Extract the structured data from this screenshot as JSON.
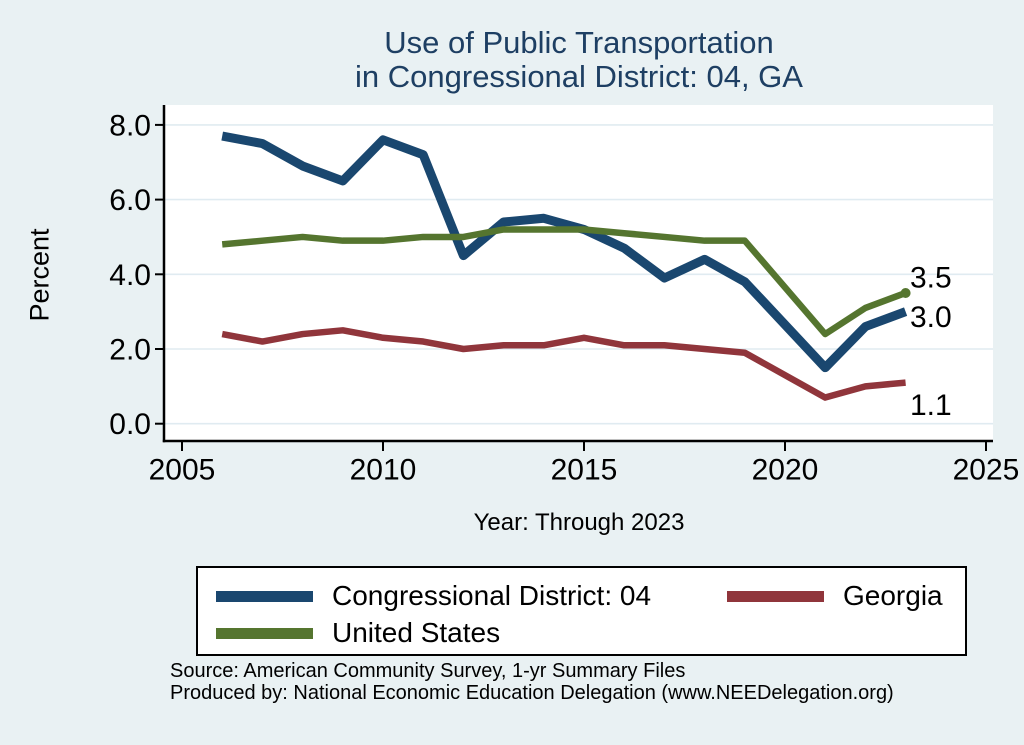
{
  "title": {
    "line1": "Use of Public Transportation",
    "line2": "in Congressional District: 04, GA"
  },
  "colors": {
    "background": "#e9f1f3",
    "plot_background": "#ffffff",
    "grid": "#e0ebf1",
    "axis": "#000000",
    "title_text": "#1e3f63",
    "district_line": "#1A476F",
    "georgia_line": "#90353B",
    "us_line": "#55752F"
  },
  "chart_data": {
    "type": "line",
    "title": "Use of Public Transportation in Congressional District: 04, GA",
    "xlabel": "Year: Through 2023",
    "ylabel": "Percent",
    "xlim": [
      2004.5,
      2025.3
    ],
    "ylim": [
      0,
      8.9
    ],
    "grid": true,
    "legend_position": "bottom",
    "x_ticks": [
      {
        "value": 2005,
        "label": "2005"
      },
      {
        "value": 2010,
        "label": "2010"
      },
      {
        "value": 2015,
        "label": "2015"
      },
      {
        "value": 2020,
        "label": "2020"
      },
      {
        "value": 2025,
        "label": "2025"
      }
    ],
    "y_ticks": [
      {
        "value": 0,
        "label": "0.0"
      },
      {
        "value": 2,
        "label": "2.0"
      },
      {
        "value": 4,
        "label": "4.0"
      },
      {
        "value": 6,
        "label": "6.0"
      },
      {
        "value": 8,
        "label": "8.0"
      }
    ],
    "x": [
      2006,
      2007,
      2008,
      2009,
      2010,
      2011,
      2012,
      2013,
      2014,
      2015,
      2016,
      2017,
      2018,
      2019,
      2021,
      2022,
      2023
    ],
    "series": [
      {
        "name": "Congressional District: 04",
        "color": "#1A476F",
        "stroke_width": 9,
        "end_label": "3.0",
        "end_dot": false,
        "values": [
          7.7,
          7.5,
          6.9,
          6.5,
          7.6,
          7.2,
          4.5,
          5.4,
          5.5,
          5.2,
          4.7,
          3.9,
          4.4,
          3.8,
          1.5,
          2.6,
          3.0
        ]
      },
      {
        "name": "Georgia",
        "color": "#90353B",
        "stroke_width": 6.5,
        "end_label": "1.1",
        "end_dot": false,
        "values": [
          2.4,
          2.2,
          2.4,
          2.5,
          2.3,
          2.2,
          2.0,
          2.1,
          2.1,
          2.3,
          2.1,
          2.1,
          2.0,
          1.9,
          0.7,
          1.0,
          1.1
        ]
      },
      {
        "name": "United States",
        "color": "#55752F",
        "stroke_width": 6.5,
        "end_label": "3.5",
        "end_dot": true,
        "values": [
          4.8,
          4.9,
          5.0,
          4.9,
          4.9,
          5.0,
          5.0,
          5.2,
          5.2,
          5.2,
          5.1,
          5.0,
          4.9,
          4.9,
          2.4,
          3.1,
          3.5
        ]
      }
    ]
  },
  "legend": {
    "items": [
      {
        "label": "Congressional District: 04",
        "color": "#1A476F"
      },
      {
        "label": "Georgia",
        "color": "#90353B"
      },
      {
        "label": "United States",
        "color": "#55752F"
      }
    ]
  },
  "footer": {
    "source_line": "Source: American Community Survey, 1-yr Summary Files",
    "produced_line": "Produced by: National Economic Education Delegation (www.NEEDelegation.org)"
  }
}
